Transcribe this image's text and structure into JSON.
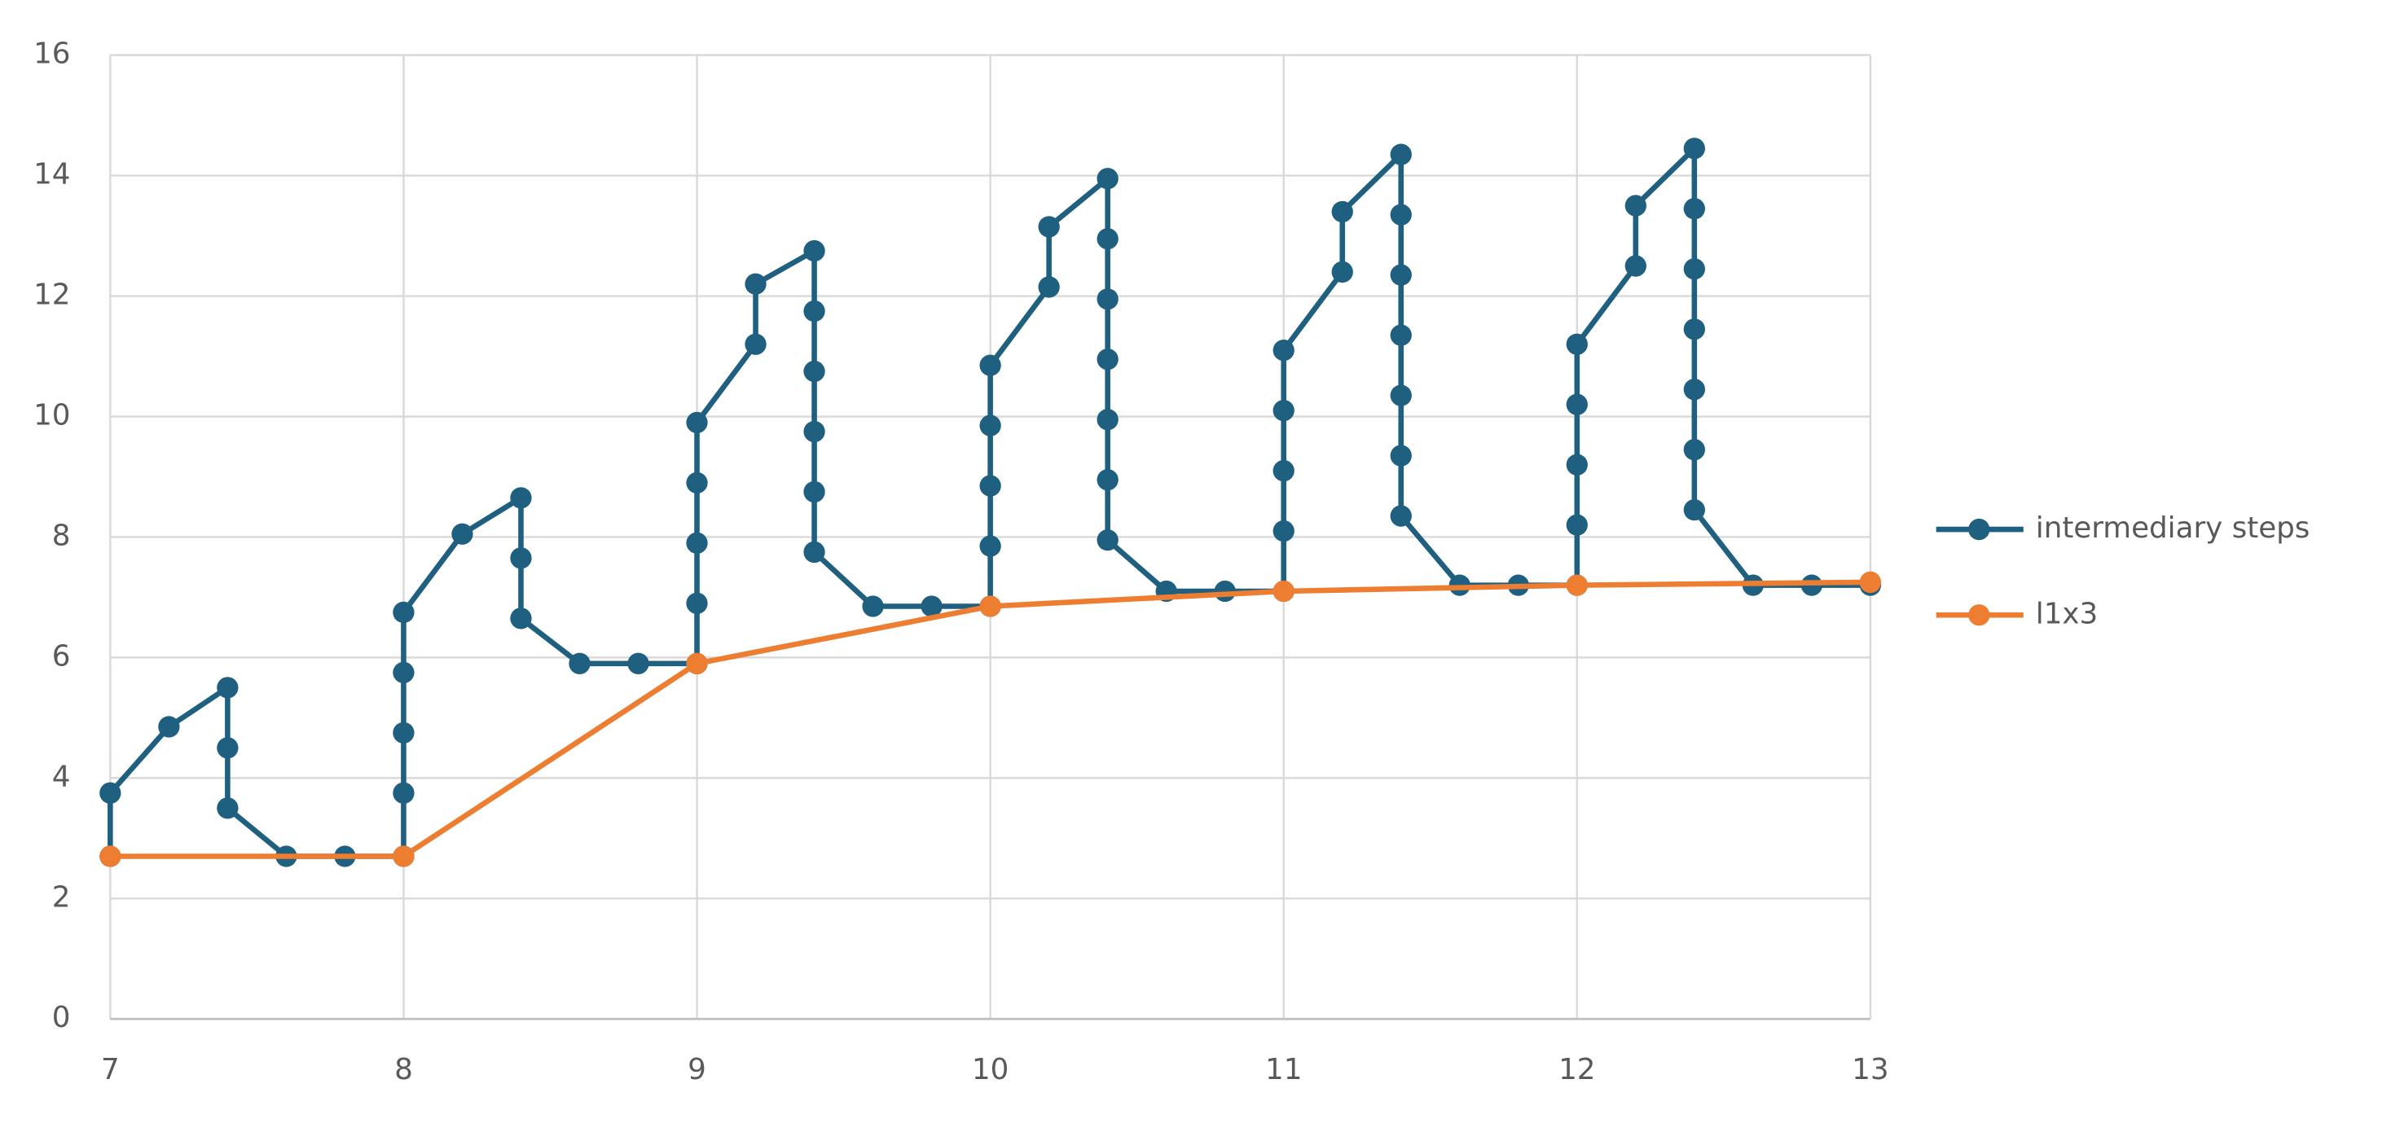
{
  "chart_data": {
    "type": "line",
    "series": [
      {
        "name": "intermediary steps",
        "color": "#1f5f80",
        "x": [
          7,
          7,
          7.2,
          7.4,
          7.4,
          7.4,
          7.6,
          7.8,
          8,
          8,
          8,
          8,
          8,
          8.2,
          8.4,
          8.4,
          8.4,
          8.6,
          8.8,
          9,
          9,
          9,
          9,
          9,
          9.2,
          9.2,
          9.4,
          9.4,
          9.4,
          9.4,
          9.4,
          9.4,
          9.6,
          9.8,
          10,
          10,
          10,
          10,
          10,
          10.2,
          10.2,
          10.4,
          10.4,
          10.4,
          10.4,
          10.4,
          10.4,
          10.4,
          10.6,
          10.8,
          11,
          11,
          11,
          11,
          11,
          11.2,
          11.2,
          11.4,
          11.4,
          11.4,
          11.4,
          11.4,
          11.4,
          11.4,
          11.6,
          11.8,
          12,
          12,
          12,
          12,
          12,
          12.2,
          12.2,
          12.4,
          12.4,
          12.4,
          12.4,
          12.4,
          12.4,
          12.4,
          12.6,
          12.8,
          13
        ],
        "values": [
          2.7,
          3.75,
          4.85,
          5.5,
          4.5,
          3.5,
          2.7,
          2.7,
          2.7,
          3.75,
          4.75,
          5.75,
          6.75,
          8.05,
          8.65,
          7.65,
          6.65,
          5.9,
          5.9,
          5.9,
          6.9,
          7.9,
          8.9,
          9.9,
          11.2,
          12.2,
          12.75,
          11.75,
          10.75,
          9.75,
          8.75,
          7.75,
          6.85,
          6.85,
          6.85,
          7.85,
          8.85,
          9.85,
          10.85,
          12.15,
          13.15,
          13.95,
          12.95,
          11.95,
          10.95,
          9.95,
          8.95,
          7.95,
          7.1,
          7.1,
          7.1,
          8.1,
          9.1,
          10.1,
          11.1,
          12.4,
          13.4,
          14.35,
          13.35,
          12.35,
          11.35,
          10.35,
          9.35,
          8.35,
          7.2,
          7.2,
          7.2,
          8.2,
          9.2,
          10.2,
          11.2,
          12.5,
          13.5,
          14.45,
          13.45,
          12.45,
          11.45,
          10.45,
          9.45,
          8.45,
          7.2,
          7.2,
          7.2
        ]
      },
      {
        "name": "l1x3",
        "color": "#ed7d31",
        "x": [
          7,
          8,
          9,
          10,
          11,
          12,
          13
        ],
        "values": [
          2.7,
          2.7,
          5.9,
          6.85,
          7.1,
          7.2,
          7.25
        ]
      }
    ],
    "xlim": [
      7,
      13
    ],
    "xticks": [
      7,
      8,
      9,
      10,
      11,
      12,
      13
    ],
    "ylim": [
      0,
      16
    ],
    "yticks": [
      0,
      2,
      4,
      6,
      8,
      10,
      12,
      14,
      16
    ],
    "grid": true,
    "legend": "right"
  }
}
